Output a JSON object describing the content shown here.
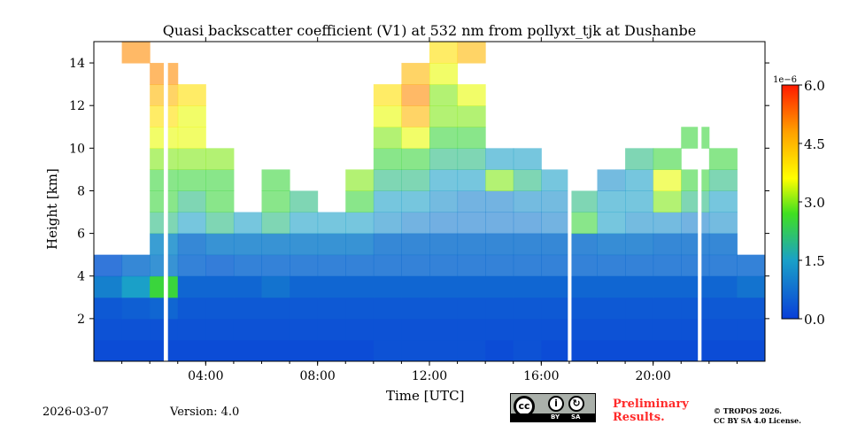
{
  "chart_data": {
    "type": "heatmap",
    "title": "Quasi backscatter coefficient (V1) at 532 nm from pollyxt_tjk at Dushanbe",
    "xlabel": "Time [UTC]",
    "ylabel": "Height [km]",
    "xlim_hours": [
      0,
      24
    ],
    "ylim_km": [
      0,
      15
    ],
    "xticks": [
      {
        "v": 4,
        "label": "04:00"
      },
      {
        "v": 8,
        "label": "08:00"
      },
      {
        "v": 12,
        "label": "12:00"
      },
      {
        "v": 16,
        "label": "16:00"
      },
      {
        "v": 20,
        "label": "20:00"
      }
    ],
    "yticks": [
      {
        "v": 2,
        "label": "2"
      },
      {
        "v": 4,
        "label": "4"
      },
      {
        "v": 6,
        "label": "6"
      },
      {
        "v": 8,
        "label": "8"
      },
      {
        "v": 10,
        "label": "10"
      },
      {
        "v": 12,
        "label": "12"
      },
      {
        "v": 14,
        "label": "14"
      }
    ],
    "colorbar": {
      "min": 0,
      "max": 6.0,
      "scale_label": "1e−6",
      "ticks": [
        "0.0",
        "1.5",
        "3.0",
        "4.5",
        "6.0"
      ],
      "tick_values": [
        0,
        1.5,
        3,
        4.5,
        6
      ]
    },
    "data_gaps_hours": [
      [
        2.5,
        2.65
      ],
      [
        16.95,
        17.08
      ],
      [
        21.6,
        21.73
      ]
    ],
    "grid_note": "rows = 1 km height bins from 0 km upward, columns = hourly bins 00-23 UTC, values in 1e-6 units, null = no signal",
    "values": [
      [
        0.2,
        0.2,
        0.2,
        0.2,
        0.2,
        0.2,
        0.2,
        0.2,
        0.2,
        0.2,
        0.3,
        0.3,
        0.3,
        0.3,
        0.2,
        0.3,
        0.2,
        0.2,
        0.2,
        0.2,
        0.2,
        0.2,
        0.2,
        0.2
      ],
      [
        0.3,
        0.3,
        0.3,
        0.3,
        0.3,
        0.3,
        0.3,
        0.3,
        0.3,
        0.3,
        0.3,
        0.3,
        0.3,
        0.3,
        0.3,
        0.3,
        0.3,
        0.3,
        0.3,
        0.3,
        0.3,
        0.3,
        0.3,
        0.3
      ],
      [
        0.4,
        0.5,
        0.6,
        0.4,
        0.4,
        0.4,
        0.4,
        0.4,
        0.4,
        0.4,
        0.4,
        0.4,
        0.4,
        0.4,
        0.4,
        0.4,
        0.4,
        0.4,
        0.4,
        0.4,
        0.4,
        0.4,
        0.4,
        0.4
      ],
      [
        1.0,
        1.5,
        2.5,
        0.6,
        0.6,
        0.6,
        0.8,
        0.6,
        0.6,
        0.6,
        0.6,
        0.6,
        0.6,
        0.6,
        0.6,
        0.6,
        0.6,
        0.6,
        0.6,
        0.6,
        0.6,
        0.6,
        0.6,
        0.8
      ],
      [
        0.5,
        0.8,
        1.0,
        0.7,
        0.6,
        0.7,
        0.7,
        0.7,
        0.7,
        0.7,
        0.7,
        0.7,
        0.7,
        0.7,
        0.7,
        0.7,
        0.7,
        0.7,
        0.7,
        0.7,
        0.7,
        0.7,
        0.7,
        0.7
      ],
      [
        null,
        null,
        1.2,
        0.8,
        1.0,
        1.0,
        1.0,
        1.0,
        1.0,
        1.0,
        0.8,
        0.8,
        0.8,
        0.8,
        0.8,
        0.8,
        0.8,
        0.8,
        0.9,
        0.9,
        0.8,
        0.8,
        0.8,
        null
      ],
      [
        null,
        null,
        2.0,
        1.5,
        2.0,
        1.5,
        2.0,
        1.5,
        1.5,
        1.5,
        1.2,
        1.0,
        0.9,
        0.9,
        0.9,
        0.9,
        1.0,
        2.5,
        1.5,
        1.2,
        1.2,
        1.0,
        1.2,
        null
      ],
      [
        null,
        null,
        2.5,
        2.0,
        2.5,
        null,
        2.5,
        2.0,
        null,
        2.5,
        1.5,
        1.5,
        1.2,
        1.0,
        1.0,
        1.2,
        1.2,
        2.0,
        1.5,
        1.5,
        3.0,
        2.0,
        1.5,
        null
      ],
      [
        null,
        null,
        2.5,
        2.5,
        2.5,
        null,
        2.5,
        null,
        null,
        3.0,
        2.0,
        2.0,
        1.5,
        1.5,
        3.0,
        2.0,
        1.5,
        null,
        1.2,
        1.5,
        3.5,
        2.5,
        2.0,
        null
      ],
      [
        null,
        null,
        3.0,
        3.0,
        3.0,
        null,
        null,
        null,
        null,
        null,
        2.5,
        2.5,
        2.0,
        2.0,
        1.5,
        1.5,
        null,
        null,
        null,
        2.0,
        2.5,
        null,
        2.5,
        null
      ],
      [
        null,
        null,
        3.5,
        3.5,
        null,
        null,
        null,
        null,
        null,
        null,
        3.0,
        3.5,
        2.5,
        2.5,
        null,
        null,
        null,
        null,
        null,
        null,
        null,
        2.5,
        null,
        null
      ],
      [
        null,
        null,
        4.0,
        3.5,
        null,
        null,
        null,
        null,
        null,
        null,
        3.5,
        4.5,
        3.0,
        3.0,
        null,
        null,
        null,
        null,
        null,
        null,
        null,
        null,
        null,
        null
      ],
      [
        null,
        null,
        4.5,
        4.0,
        null,
        null,
        null,
        null,
        null,
        null,
        4.0,
        5.0,
        3.0,
        3.5,
        null,
        null,
        null,
        null,
        null,
        null,
        null,
        null,
        null,
        null
      ],
      [
        null,
        null,
        5.0,
        null,
        null,
        null,
        null,
        null,
        null,
        null,
        null,
        4.5,
        3.5,
        null,
        null,
        null,
        null,
        null,
        null,
        null,
        null,
        null,
        null,
        null
      ],
      [
        null,
        5.0,
        null,
        null,
        null,
        null,
        null,
        null,
        null,
        null,
        null,
        null,
        4.0,
        4.5,
        null,
        null,
        null,
        null,
        null,
        null,
        null,
        null,
        null,
        null
      ]
    ]
  },
  "footer": {
    "date": "2026-03-07",
    "version": "Version: 4.0",
    "preliminary": "Preliminary Results.",
    "copyright": "© TROPOS 2026.",
    "license": "CC BY SA 4.0 License.",
    "cc_logo": {
      "cc": "cc",
      "by": "BY",
      "sa": "SA"
    }
  }
}
